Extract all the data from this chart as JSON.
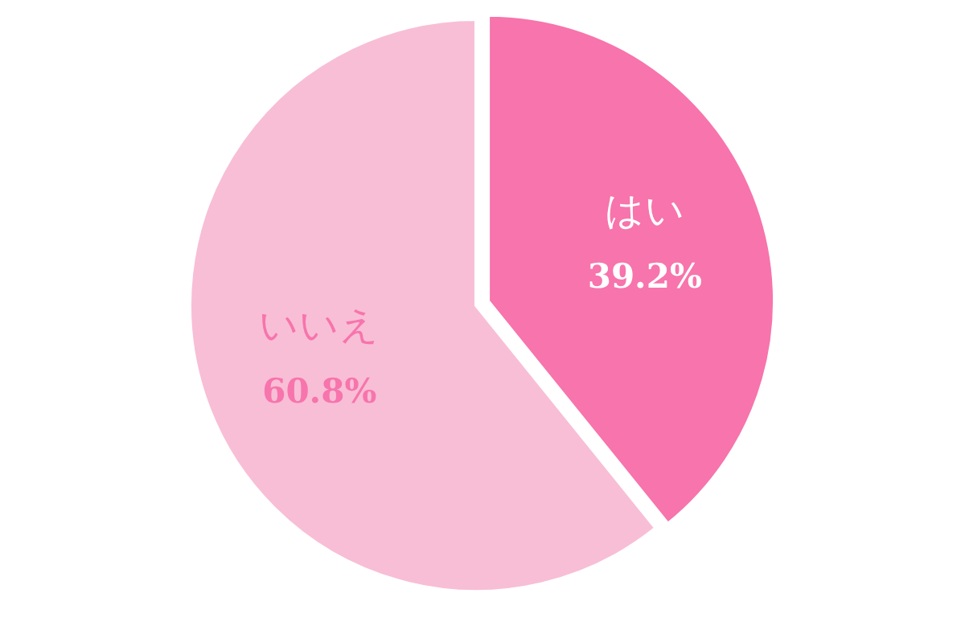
{
  "chart_data": {
    "type": "pie",
    "categories": [
      "はい",
      "いいえ"
    ],
    "values": [
      39.2,
      60.8
    ],
    "colors": [
      "#f774ac",
      "#f8bed6"
    ],
    "value_labels": [
      "39.2%",
      "60.8%"
    ]
  }
}
